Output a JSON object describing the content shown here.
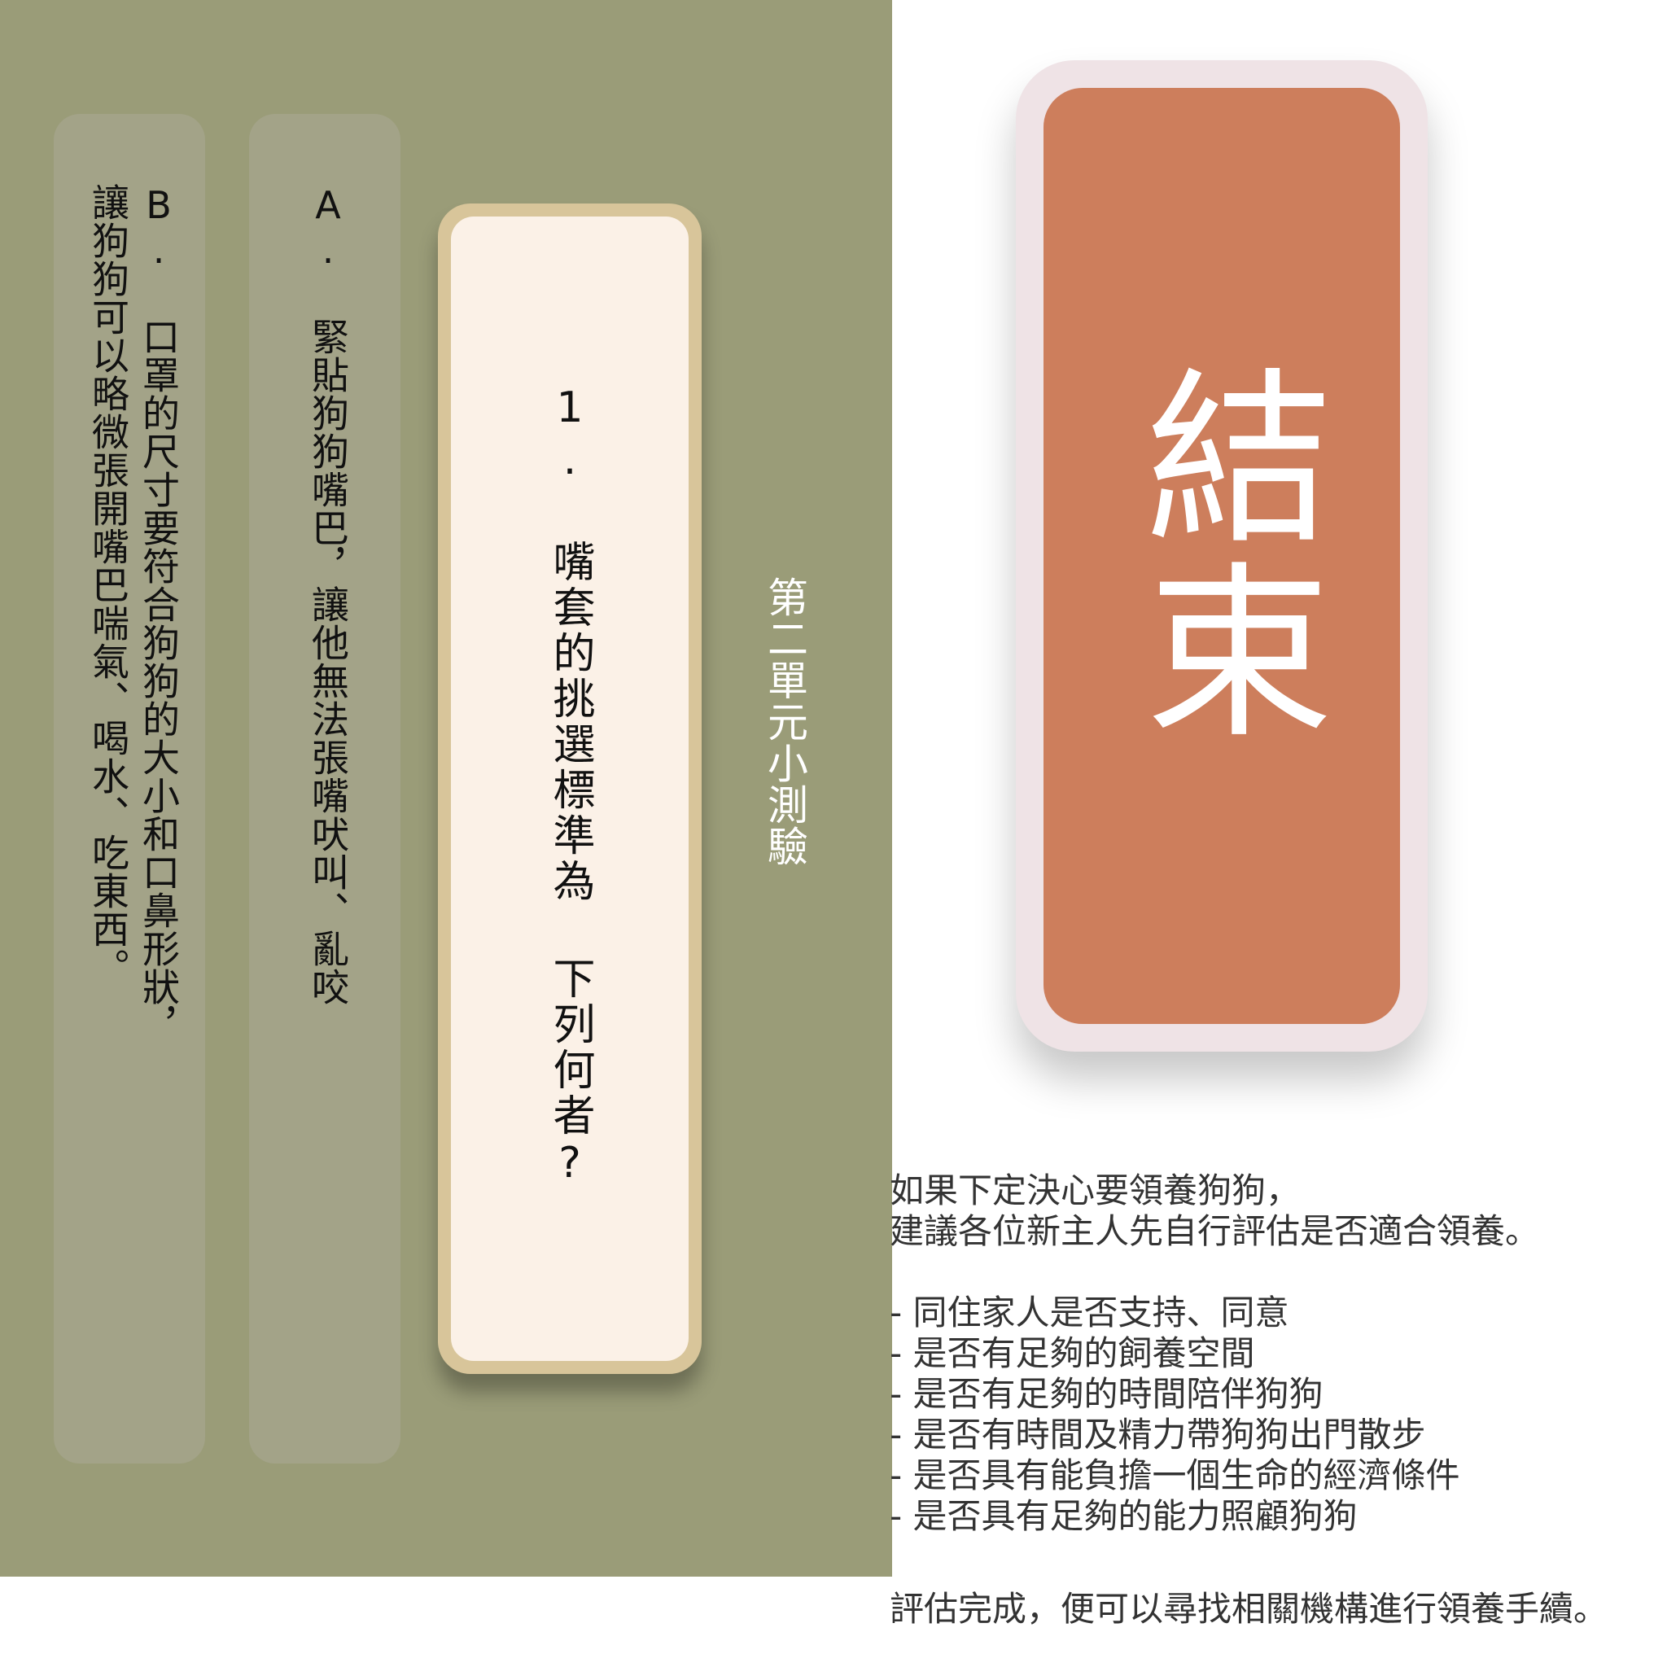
{
  "quiz": {
    "unit_title": "第二單元小測驗",
    "question": "1. 嘴套的挑選標準為 下列何者?",
    "option_a": "A. 緊貼狗狗嘴巴，讓他無法張嘴吠叫、亂咬",
    "option_b_line1": "B. 口罩的尺寸要符合狗狗的大小和口鼻形狀，",
    "option_b_line2": "讓狗狗可以略微張開嘴巴喘氣、喝水、吃東西。"
  },
  "end_button": {
    "label": "結束"
  },
  "info": {
    "intro_line1": "如果下定決心要領養狗狗，",
    "intro_line2": "建議各位新主人先自行評估是否適合領養。",
    "checklist": [
      "- 同住家人是否支持、同意",
      "- 是否有足夠的飼養空間",
      "- 是否有足夠的時間陪伴狗狗",
      "- 是否有時間及精力帶狗狗出門散步",
      "- 是否具有能負擔一個生命的經濟條件",
      "- 是否具有足夠的能力照顧狗狗"
    ],
    "footer": "評估完成，便可以尋找相關機構進行領養手續。"
  },
  "colors": {
    "panel_bg": "#9a9c78",
    "option_bg": "#a3a388",
    "question_border": "#d8c59a",
    "question_bg": "#fbf1e7",
    "end_border": "#efe3e6",
    "end_bg": "#cd7e5c"
  }
}
